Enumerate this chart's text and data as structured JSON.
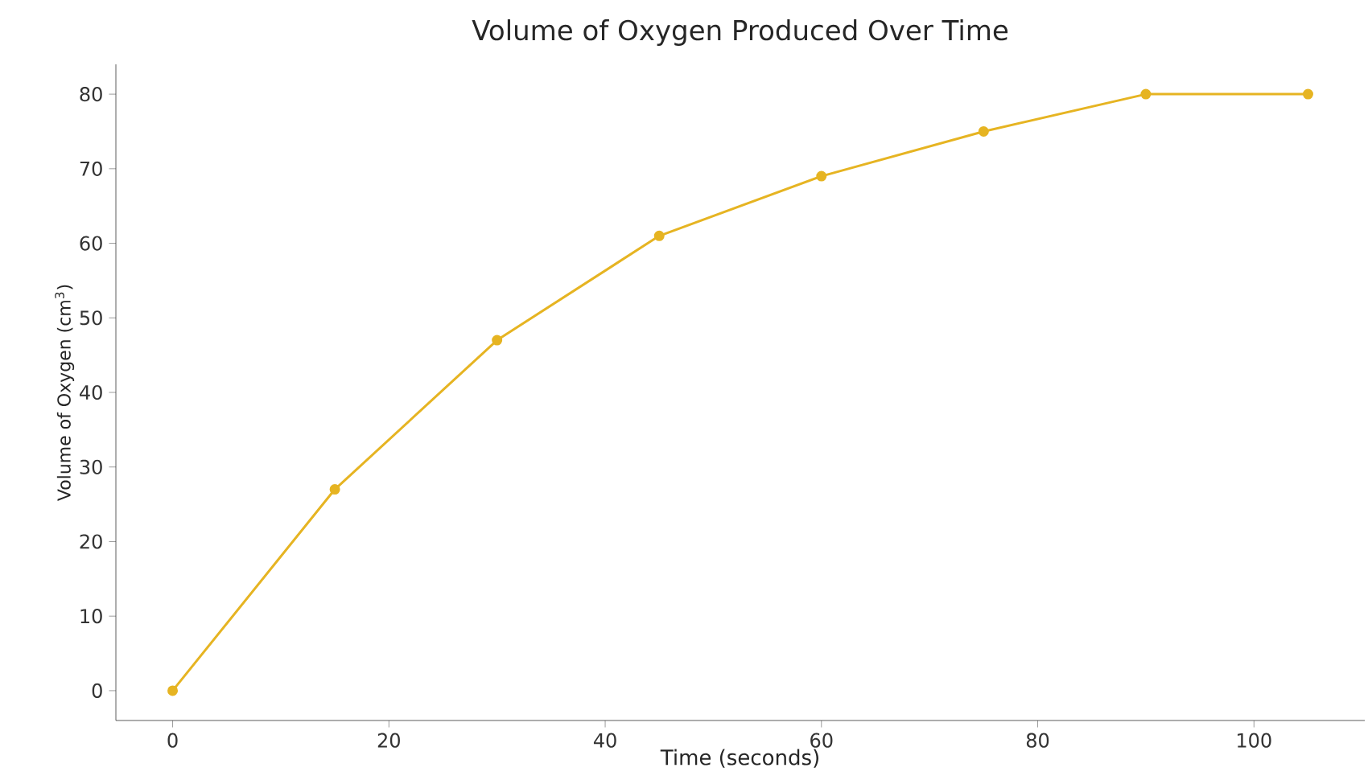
{
  "chart_data": {
    "type": "line",
    "title": "Volume of Oxygen Produced Over Time",
    "xlabel": "Time (seconds)",
    "ylabel": "Volume of Oxygen (cm$^{3}$)",
    "x": [
      0,
      15,
      30,
      45,
      60,
      75,
      90,
      105
    ],
    "series": [
      {
        "color": "#e6b422",
        "values": [
          0,
          27,
          47,
          61,
          69,
          75,
          80,
          80
        ]
      }
    ],
    "xlim": [
      -5.25,
      110.25
    ],
    "ylim": [
      -4,
      84
    ],
    "xticks": [
      0,
      20,
      40,
      60,
      80,
      100
    ],
    "yticks": [
      0,
      10,
      20,
      30,
      40,
      50,
      60,
      70,
      80
    ],
    "marker": "circle",
    "line_style": "solid"
  }
}
